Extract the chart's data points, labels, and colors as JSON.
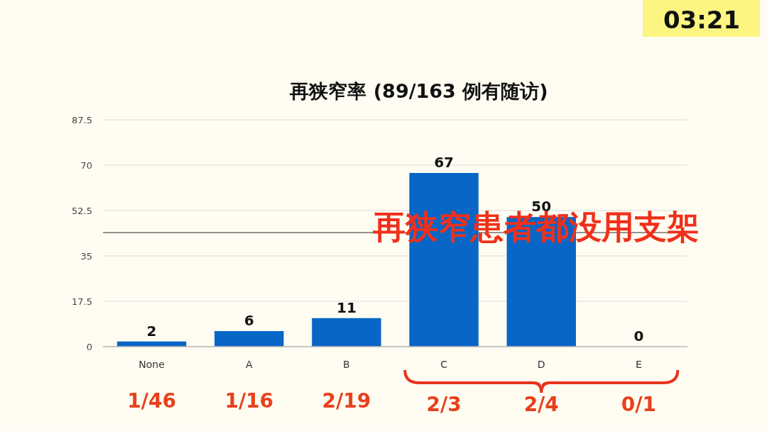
{
  "chart_data": {
    "type": "bar",
    "title": "再狭窄率 (89/163 例有随访)",
    "categories": [
      "None",
      "A",
      "B",
      "C",
      "D",
      "E"
    ],
    "values": [
      2,
      6,
      11,
      67,
      50,
      0
    ],
    "color": "#0866c6",
    "data_labels": true,
    "ylim": [
      0,
      87.5
    ],
    "yticks": [
      0,
      17.5,
      35,
      52.5,
      70,
      87.5
    ],
    "grid": "y",
    "ref_lines": [
      {
        "axis": "y",
        "value": 44,
        "color": "#555555"
      }
    ],
    "annotations": [
      "再狭窄患者都没用支架",
      "03:21",
      "1/46",
      "1/16",
      "2/19",
      "2/3",
      "2/4",
      "0/1"
    ]
  }
}
